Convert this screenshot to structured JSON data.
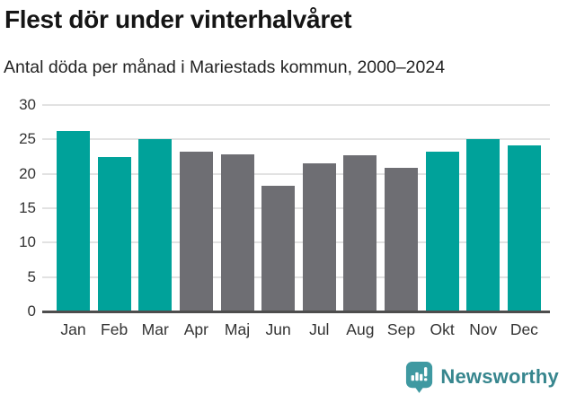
{
  "header": {
    "title": "Flest dör under vinterhalvåret",
    "subtitle": "Antal döda per månad i Mariestads kommun, 2000–2024"
  },
  "chart_data": {
    "type": "bar",
    "title": "Flest dör under vinterhalvåret",
    "subtitle": "Antal döda per månad i Mariestads kommun, 2000–2024",
    "categories": [
      "Jan",
      "Feb",
      "Mar",
      "Apr",
      "Maj",
      "Jun",
      "Jul",
      "Aug",
      "Sep",
      "Okt",
      "Nov",
      "Dec"
    ],
    "values": [
      26.2,
      22.5,
      25.1,
      23.2,
      22.8,
      18.3,
      21.5,
      22.7,
      20.9,
      23.2,
      25.1,
      24.1
    ],
    "bar_colors": [
      "#00a29a",
      "#00a29a",
      "#00a29a",
      "#6e6e73",
      "#6e6e73",
      "#6e6e73",
      "#6e6e73",
      "#6e6e73",
      "#6e6e73",
      "#00a29a",
      "#00a29a",
      "#00a29a"
    ],
    "color_legend": {
      "winter_months": "#00a29a",
      "summer_months": "#6e6e73"
    },
    "xlabel": "",
    "ylabel": "",
    "ylim": [
      0,
      30
    ],
    "yticks": [
      0,
      5,
      10,
      15,
      20,
      25,
      30
    ],
    "grid": "horizontal",
    "legend": "none"
  },
  "footer": {
    "brand": "Newsworthy",
    "logo_icon": "newsworthy-speech-bubble-bar-chart-icon"
  },
  "colors": {
    "accent_teal": "#00a29a",
    "neutral_gray": "#6e6e73",
    "gridline": "#e2e2e2",
    "axis_line": "#4d4d4d",
    "brand_teal": "#3f99a1"
  }
}
